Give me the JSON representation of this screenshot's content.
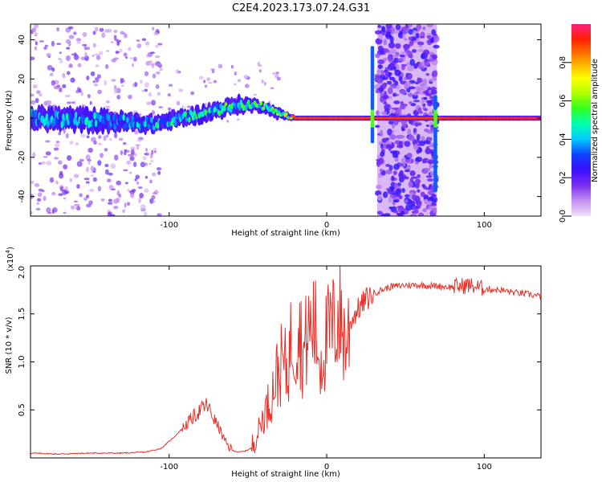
{
  "figure_title": "C2E4.2023.173.07.24.G31",
  "chart_data": [
    {
      "type": "heatmap",
      "title": "C2E4.2023.173.07.24.G31",
      "xlabel": "Height of straight line (km)",
      "ylabel": "Frequency (Hz)",
      "xlim": [
        -188,
        136
      ],
      "ylim": [
        -50,
        48
      ],
      "x_ticks": [
        -100,
        0,
        100
      ],
      "x_tick_labels": [
        "-100",
        "0",
        "100"
      ],
      "y_ticks": [
        -40,
        -20,
        0,
        20,
        40
      ],
      "y_tick_labels": [
        "-40",
        "-20",
        "0",
        "20",
        "40"
      ],
      "colorbar": {
        "label": "Normalized spectral amplitude",
        "range": [
          0,
          1
        ],
        "ticks": [
          0.0,
          0.2,
          0.4,
          0.6,
          0.8
        ],
        "tick_labels": [
          "0.0",
          "0.2",
          "0.4",
          "0.6",
          "0.8"
        ],
        "colors": [
          "#f2e0f8",
          "#c48ff0",
          "#7a2ef0",
          "#3a10ff",
          "#1040ff",
          "#00c8ff",
          "#00ffb0",
          "#30ff20",
          "#b0ff00",
          "#ffff00",
          "#ff9000",
          "#ff2000",
          "#ff2080"
        ]
      },
      "signal_track": [
        {
          "x": -188,
          "freq": 0,
          "amp": 0.4,
          "spread": 4
        },
        {
          "x": -150,
          "freq": -1,
          "amp": 0.42,
          "spread": 4
        },
        {
          "x": -110,
          "freq": -3,
          "amp": 0.45,
          "spread": 3
        },
        {
          "x": -80,
          "freq": 2,
          "amp": 0.5,
          "spread": 3
        },
        {
          "x": -55,
          "freq": 7,
          "amp": 0.55,
          "spread": 3
        },
        {
          "x": -40,
          "freq": 6,
          "amp": 0.55,
          "spread": 2
        },
        {
          "x": -30,
          "freq": 2,
          "amp": 0.55,
          "spread": 2
        },
        {
          "x": -20,
          "freq": 0,
          "amp": 0.9,
          "spread": 1
        },
        {
          "x": 27,
          "freq": 0,
          "amp": 0.9,
          "spread": 1
        },
        {
          "x": 70,
          "freq": 0,
          "amp": 0.9,
          "spread": 1
        },
        {
          "x": 136,
          "freq": 0,
          "amp": 0.95,
          "spread": 1
        }
      ],
      "noise_band": {
        "x_range": [
          32,
          70
        ],
        "freq_range": [
          -50,
          48
        ],
        "amp": 0.25
      }
    },
    {
      "type": "line",
      "xlabel": "Height of straight line (km)",
      "ylabel": "SNR (10 * v/v)",
      "y_scale_note": "(x10^4)",
      "y_scale_base": "(x10",
      "y_scale_exp": "4",
      "y_scale_close": ")",
      "xlim": [
        -188,
        136
      ],
      "ylim": [
        0,
        2.0
      ],
      "x_ticks": [
        -100,
        0,
        100
      ],
      "x_tick_labels": [
        "-100",
        "0",
        "100"
      ],
      "y_ticks": [
        0.5,
        1.0,
        1.5,
        2.0
      ],
      "y_tick_labels": [
        "0.5",
        "1.0",
        "1.5",
        "2.0"
      ],
      "color": "#e8302a",
      "series": [
        {
          "name": "SNR",
          "x": [
            -188,
            -170,
            -150,
            -130,
            -115,
            -105,
            -98,
            -92,
            -85,
            -80,
            -76,
            -72,
            -68,
            -64,
            -60,
            -56,
            -52,
            -48,
            -44,
            -40,
            -36,
            -32,
            -28,
            -25,
            -22,
            -20,
            -18,
            -15,
            -12,
            -8,
            -4,
            0,
            4,
            8,
            12,
            16,
            20,
            25,
            30,
            40,
            50,
            60,
            70,
            80,
            90,
            95,
            100,
            110,
            120,
            130,
            136
          ],
          "y": [
            0.05,
            0.04,
            0.05,
            0.05,
            0.06,
            0.1,
            0.2,
            0.3,
            0.42,
            0.5,
            0.55,
            0.42,
            0.3,
            0.15,
            0.08,
            0.06,
            0.07,
            0.1,
            0.25,
            0.45,
            0.6,
            0.85,
            1.0,
            0.9,
            1.3,
            1.15,
            1.45,
            1.05,
            1.3,
            1.4,
            1.0,
            1.25,
            1.35,
            1.5,
            1.2,
            1.45,
            1.55,
            1.65,
            1.72,
            1.78,
            1.8,
            1.8,
            1.79,
            1.78,
            1.8,
            1.78,
            1.76,
            1.75,
            1.72,
            1.7,
            1.68
          ]
        }
      ]
    }
  ]
}
